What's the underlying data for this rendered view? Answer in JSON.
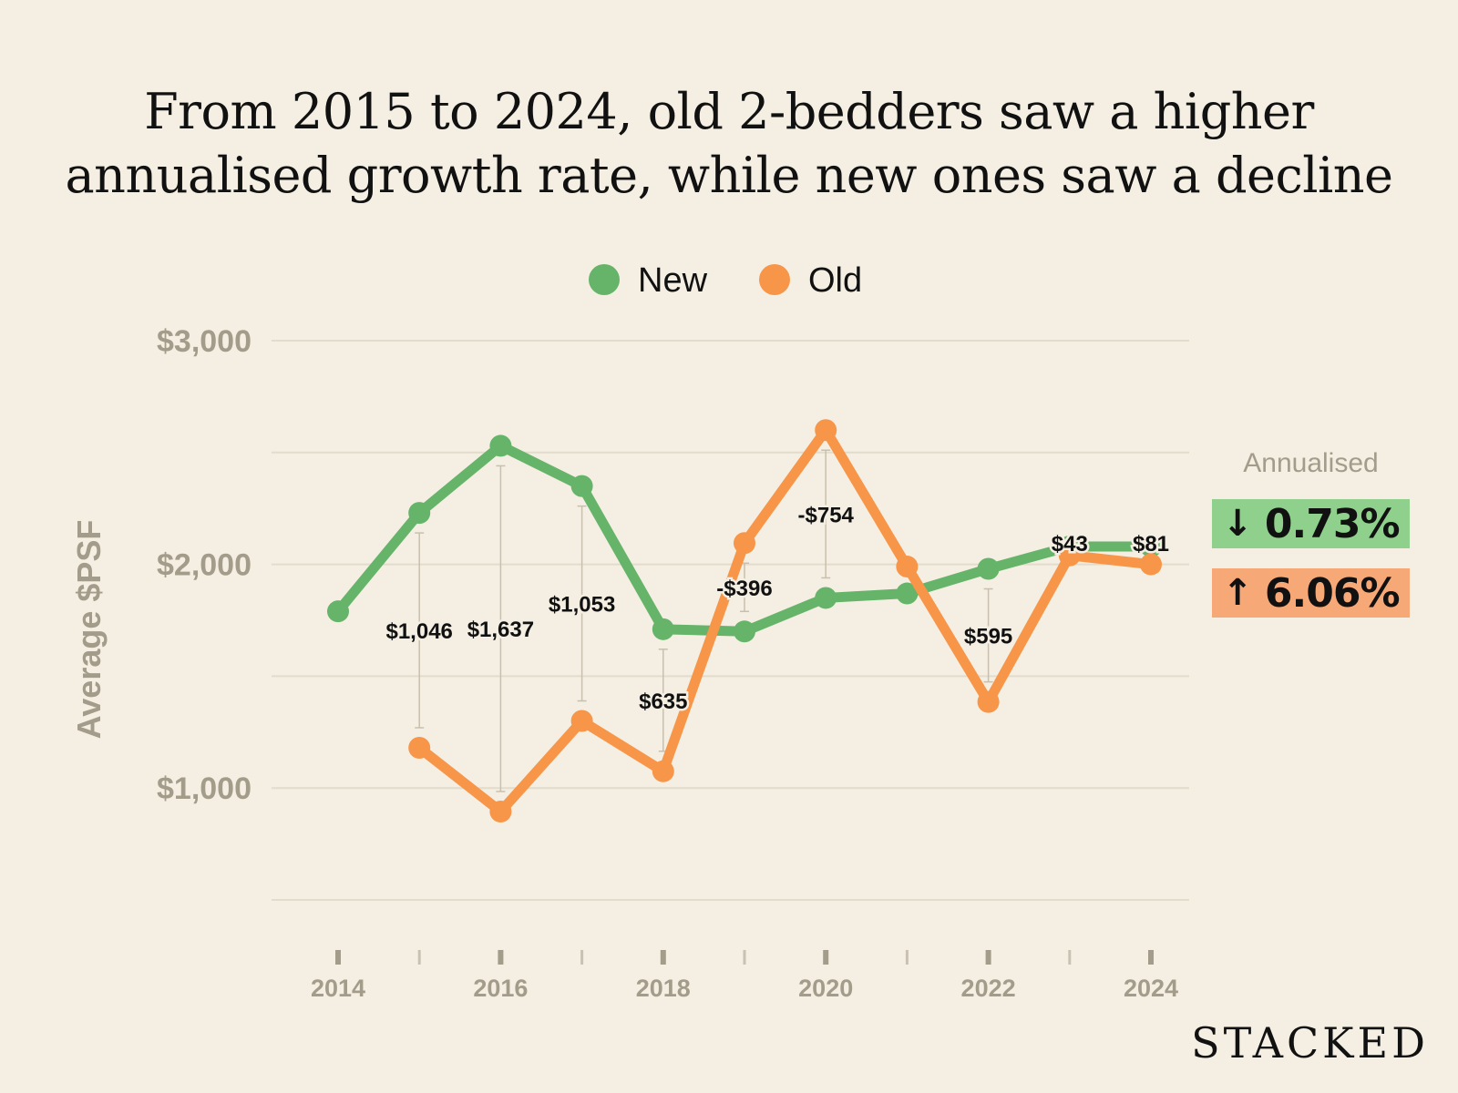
{
  "title": {
    "line1": "From 2015 to 2024, old 2-bedders saw a higher",
    "line2": "annualised growth rate, while new ones saw a decline"
  },
  "annualised": {
    "label": "Annualised",
    "new": {
      "arrow": "↓",
      "value": "0.73%",
      "color": "#8fd18c"
    },
    "old": {
      "arrow": "↑",
      "value": "6.06%",
      "color": "#f6a877"
    }
  },
  "brand": "STACKED",
  "chart_data": {
    "type": "line",
    "ylabel": "Average $PSF",
    "ylim": [
      500,
      3000
    ],
    "yticks": [
      1000,
      2000,
      3000
    ],
    "ytick_labels": [
      "$1,000",
      "$2,000",
      "$3,000"
    ],
    "grid": true,
    "legend_placement": "top-center",
    "x": [
      2014,
      2015,
      2016,
      2017,
      2018,
      2019,
      2020,
      2021,
      2022,
      2023,
      2024
    ],
    "xtick_labels": [
      "2014",
      "2016",
      "2018",
      "2020",
      "2022",
      "2024"
    ],
    "series": [
      {
        "name": "New",
        "color": "#66b36a",
        "values": [
          1790,
          2230,
          2530,
          2350,
          1710,
          1700,
          1850,
          1870,
          1980,
          2080,
          2080
        ]
      },
      {
        "name": "Old",
        "color": "#f79549",
        "values": [
          null,
          1180,
          895,
          1300,
          1075,
          2095,
          2600,
          1990,
          1385,
          2040,
          2000
        ]
      }
    ],
    "gap_annotations": [
      {
        "x": 2015,
        "label": "$1,046"
      },
      {
        "x": 2016,
        "label": "$1,637"
      },
      {
        "x": 2017,
        "label": "$1,053"
      },
      {
        "x": 2018,
        "label": "$635"
      },
      {
        "x": 2019,
        "label": "-$396"
      },
      {
        "x": 2020,
        "label": "-$754"
      },
      {
        "x": 2022,
        "label": "$595"
      },
      {
        "x": 2023,
        "label": "$43"
      },
      {
        "x": 2024,
        "label": "$81"
      }
    ]
  }
}
